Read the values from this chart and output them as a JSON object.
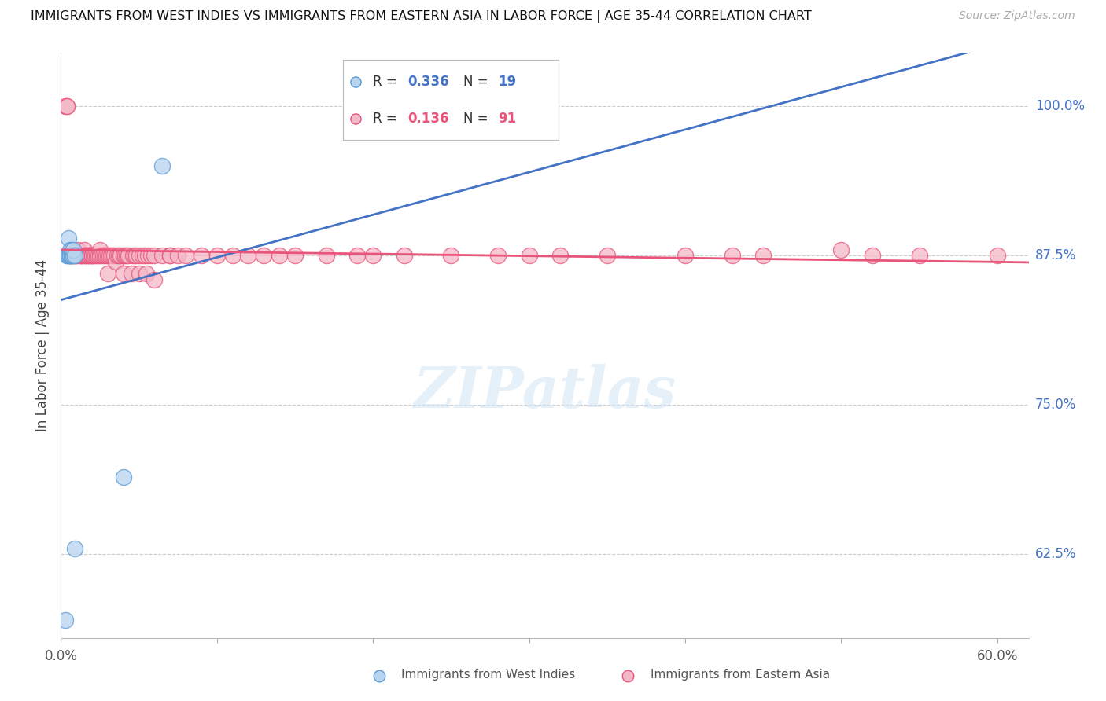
{
  "title": "IMMIGRANTS FROM WEST INDIES VS IMMIGRANTS FROM EASTERN ASIA IN LABOR FORCE | AGE 35-44 CORRELATION CHART",
  "source": "Source: ZipAtlas.com",
  "ylabel": "In Labor Force | Age 35-44",
  "xlim": [
    0.0,
    0.62
  ],
  "ylim": [
    0.555,
    1.045
  ],
  "ytick_positions": [
    1.0,
    0.875,
    0.75,
    0.625
  ],
  "ytick_labels": [
    "100.0%",
    "87.5%",
    "75.0%",
    "62.5%"
  ],
  "r_west_indies": 0.336,
  "n_west_indies": 19,
  "r_eastern_asia": 0.136,
  "n_eastern_asia": 91,
  "color_west_indies_fill": "#b8d4ee",
  "color_west_indies_edge": "#5b9bd5",
  "color_eastern_asia_fill": "#f4b8c8",
  "color_eastern_asia_edge": "#e8547a",
  "color_line_west_indies": "#4472c4",
  "color_line_eastern_asia": "#e8547a",
  "color_axis_right": "#4472c4",
  "background_color": "#ffffff",
  "west_indies_x": [
    0.003,
    0.004,
    0.004,
    0.005,
    0.005,
    0.005,
    0.006,
    0.006,
    0.006,
    0.006,
    0.007,
    0.007,
    0.007,
    0.008,
    0.008,
    0.009,
    0.009,
    0.04,
    0.065
  ],
  "west_indies_y": [
    0.57,
    0.875,
    0.875,
    0.875,
    0.89,
    0.875,
    0.875,
    0.875,
    0.88,
    0.875,
    0.875,
    0.875,
    0.88,
    0.875,
    0.88,
    0.63,
    0.875,
    0.69,
    0.95
  ],
  "eastern_asia_x": [
    0.003,
    0.004,
    0.004,
    0.006,
    0.007,
    0.008,
    0.009,
    0.01,
    0.01,
    0.011,
    0.012,
    0.013,
    0.013,
    0.014,
    0.015,
    0.015,
    0.016,
    0.016,
    0.017,
    0.018,
    0.018,
    0.019,
    0.02,
    0.02,
    0.02,
    0.021,
    0.022,
    0.023,
    0.024,
    0.025,
    0.025,
    0.026,
    0.027,
    0.028,
    0.029,
    0.03,
    0.03,
    0.031,
    0.032,
    0.033,
    0.034,
    0.035,
    0.036,
    0.037,
    0.038,
    0.04,
    0.04,
    0.041,
    0.042,
    0.043,
    0.045,
    0.046,
    0.047,
    0.048,
    0.05,
    0.05,
    0.052,
    0.054,
    0.055,
    0.056,
    0.058,
    0.06,
    0.06,
    0.065,
    0.07,
    0.07,
    0.075,
    0.08,
    0.09,
    0.1,
    0.11,
    0.12,
    0.13,
    0.14,
    0.15,
    0.17,
    0.19,
    0.2,
    0.22,
    0.25,
    0.28,
    0.3,
    0.32,
    0.35,
    0.4,
    0.43,
    0.45,
    0.5,
    0.52,
    0.55,
    0.6
  ],
  "eastern_asia_y": [
    1.0,
    1.0,
    1.0,
    0.875,
    0.875,
    0.875,
    0.875,
    0.875,
    0.875,
    0.88,
    0.875,
    0.875,
    0.875,
    0.875,
    0.875,
    0.88,
    0.875,
    0.875,
    0.875,
    0.875,
    0.875,
    0.875,
    0.875,
    0.875,
    0.875,
    0.875,
    0.875,
    0.875,
    0.875,
    0.875,
    0.88,
    0.875,
    0.875,
    0.875,
    0.875,
    0.875,
    0.86,
    0.875,
    0.875,
    0.875,
    0.875,
    0.87,
    0.875,
    0.875,
    0.875,
    0.86,
    0.875,
    0.875,
    0.875,
    0.875,
    0.86,
    0.875,
    0.875,
    0.875,
    0.86,
    0.875,
    0.875,
    0.875,
    0.86,
    0.875,
    0.875,
    0.855,
    0.875,
    0.875,
    0.875,
    0.875,
    0.875,
    0.875,
    0.875,
    0.875,
    0.875,
    0.875,
    0.875,
    0.875,
    0.875,
    0.875,
    0.875,
    0.875,
    0.875,
    0.875,
    0.875,
    0.875,
    0.875,
    0.875,
    0.875,
    0.875,
    0.875,
    0.88,
    0.875,
    0.875,
    0.875
  ],
  "watermark_text": "ZIPatlas",
  "watermark_color": "#d0e4f5"
}
